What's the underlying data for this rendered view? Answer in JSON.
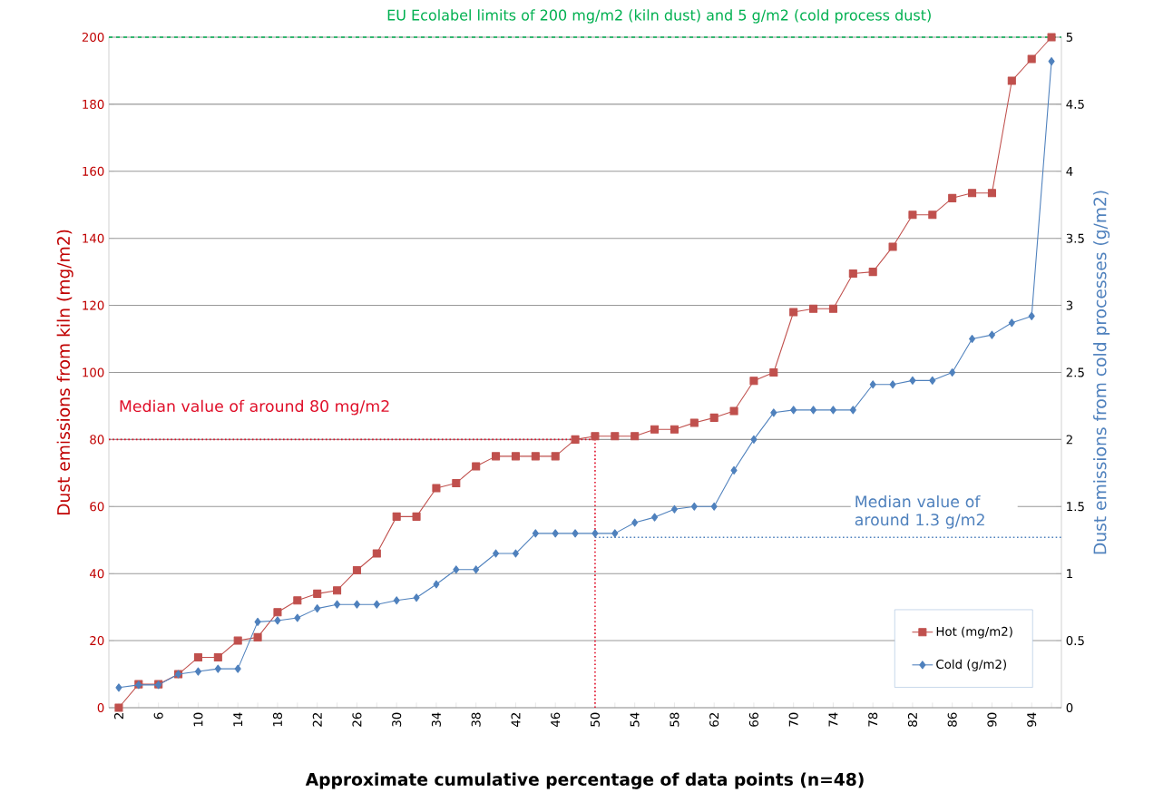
{
  "chart_data": {
    "type": "line",
    "title": "EU Ecolabel limits of 200 mg/m2 (kiln dust) and 5 g/m2 (cold process dust)",
    "xlabel": "Approximate cumulative percentage of data points (n=48)",
    "ylabel": "Dust emissions from kiln (mg/m2)",
    "y2label": "Dust emissions from cold processes (g/m2)",
    "categories": [
      "2",
      null,
      "6",
      null,
      "10",
      null,
      "14",
      null,
      "18",
      null,
      "22",
      null,
      "26",
      null,
      "30",
      null,
      "34",
      null,
      "38",
      null,
      "42",
      null,
      "46",
      null,
      "50",
      null,
      "54",
      null,
      "58",
      null,
      "62",
      null,
      "66",
      null,
      "70",
      null,
      "74",
      null,
      "78",
      null,
      "82",
      null,
      "86",
      null,
      "90",
      null,
      "94",
      null
    ],
    "series": [
      {
        "name": "Hot (mg/m2)",
        "color": "#c0504d",
        "marker": "square",
        "values": [
          0,
          7,
          7,
          10,
          15,
          15,
          20,
          21,
          28.5,
          32,
          34,
          35,
          41,
          46,
          57,
          57,
          65.5,
          67,
          72,
          75,
          75,
          75,
          75,
          80,
          81,
          81,
          81,
          83,
          83,
          85,
          86.5,
          88.5,
          97.5,
          100,
          118,
          119,
          119,
          129.5,
          130,
          137.5,
          147,
          147,
          152,
          153.5,
          153.5,
          187,
          193.5,
          200
        ]
      },
      {
        "name": "Cold (g/m2)",
        "color": "#4f81bd",
        "marker": "diamond",
        "axis": "y2",
        "values": [
          0.15,
          0.17,
          0.17,
          0.25,
          0.27,
          0.29,
          0.29,
          0.64,
          0.65,
          0.67,
          0.74,
          0.77,
          0.77,
          0.77,
          0.8,
          0.82,
          0.92,
          1.03,
          1.03,
          1.15,
          1.15,
          1.3,
          1.3,
          1.3,
          1.3,
          1.3,
          1.38,
          1.42,
          1.48,
          1.5,
          1.5,
          1.77,
          2.0,
          2.2,
          2.22,
          2.22,
          2.22,
          2.22,
          2.41,
          2.41,
          2.44,
          2.44,
          2.5,
          2.75,
          2.78,
          2.87,
          2.92,
          4.82
        ]
      }
    ],
    "ylim": [
      0,
      200
    ],
    "yticks": [
      0,
      20,
      40,
      60,
      80,
      100,
      120,
      140,
      160,
      180,
      200
    ],
    "y2lim": [
      0,
      5
    ],
    "y2ticks": [
      0,
      0.5,
      1,
      1.5,
      2,
      2.5,
      3,
      3.5,
      4,
      4.5,
      5
    ],
    "ref_lines": [
      {
        "axis": "y",
        "value": 200,
        "color": "#00b050",
        "line_style": "dashed"
      },
      {
        "axis": "y",
        "value": 80,
        "label": "Median value of around 80 mg/m2",
        "color": "#e0102a",
        "line_style": "dotted"
      },
      {
        "axis": "x",
        "value": "50",
        "color": "#e0102a",
        "line_style": "dotted"
      },
      {
        "axis": "y2",
        "value": 1.27,
        "label": "Median value of around 1.3 g/m2",
        "color": "#4f81bd",
        "line_style": "dotted"
      }
    ],
    "grid": "y",
    "legend": "bottom right"
  }
}
